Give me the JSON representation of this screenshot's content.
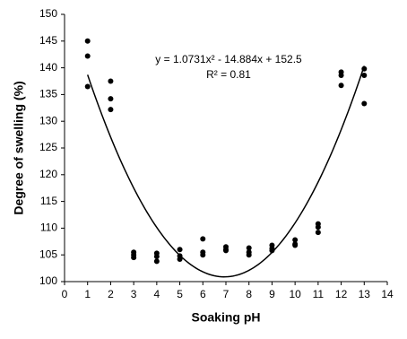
{
  "chart_data": {
    "type": "scatter",
    "x_label": "Soaking pH",
    "y_label": "Degree of swelling (%)",
    "x": [
      1,
      1,
      1,
      2,
      2,
      2,
      3,
      3,
      3,
      4,
      4,
      4,
      5,
      5,
      5,
      6,
      6,
      6,
      7,
      7,
      7,
      8,
      8,
      8,
      9,
      9,
      9,
      10,
      10,
      10,
      11,
      11,
      11,
      12,
      12,
      12,
      13,
      13,
      13
    ],
    "values": [
      145,
      142.2,
      136.5,
      137.5,
      134.2,
      132.2,
      105.5,
      105,
      104.5,
      105.3,
      104.7,
      103.8,
      106,
      104.8,
      104.2,
      108,
      105.5,
      105,
      106.5,
      106,
      105.8,
      106.3,
      105.5,
      105,
      106.8,
      106.2,
      105.8,
      107.8,
      107,
      106.8,
      110.8,
      110.2,
      109.2,
      139.2,
      138.6,
      136.7,
      139.8,
      138.6,
      133.3
    ],
    "color": "#000000",
    "xlim": [
      0,
      14
    ],
    "xticks": [
      0,
      1,
      2,
      3,
      4,
      5,
      6,
      7,
      8,
      9,
      10,
      11,
      12,
      13,
      14
    ],
    "ylim": [
      100,
      150
    ],
    "yticks": [
      100,
      105,
      110,
      115,
      120,
      125,
      130,
      135,
      140,
      145,
      150
    ],
    "trendline": {
      "type": "polynomial",
      "coefficients": [
        152.5,
        -14.884,
        1.0731
      ],
      "color": "#000000",
      "equation": "y = 1.0731x² - 14.884x + 152.5",
      "r_squared_label": "R² = 0.81"
    }
  }
}
